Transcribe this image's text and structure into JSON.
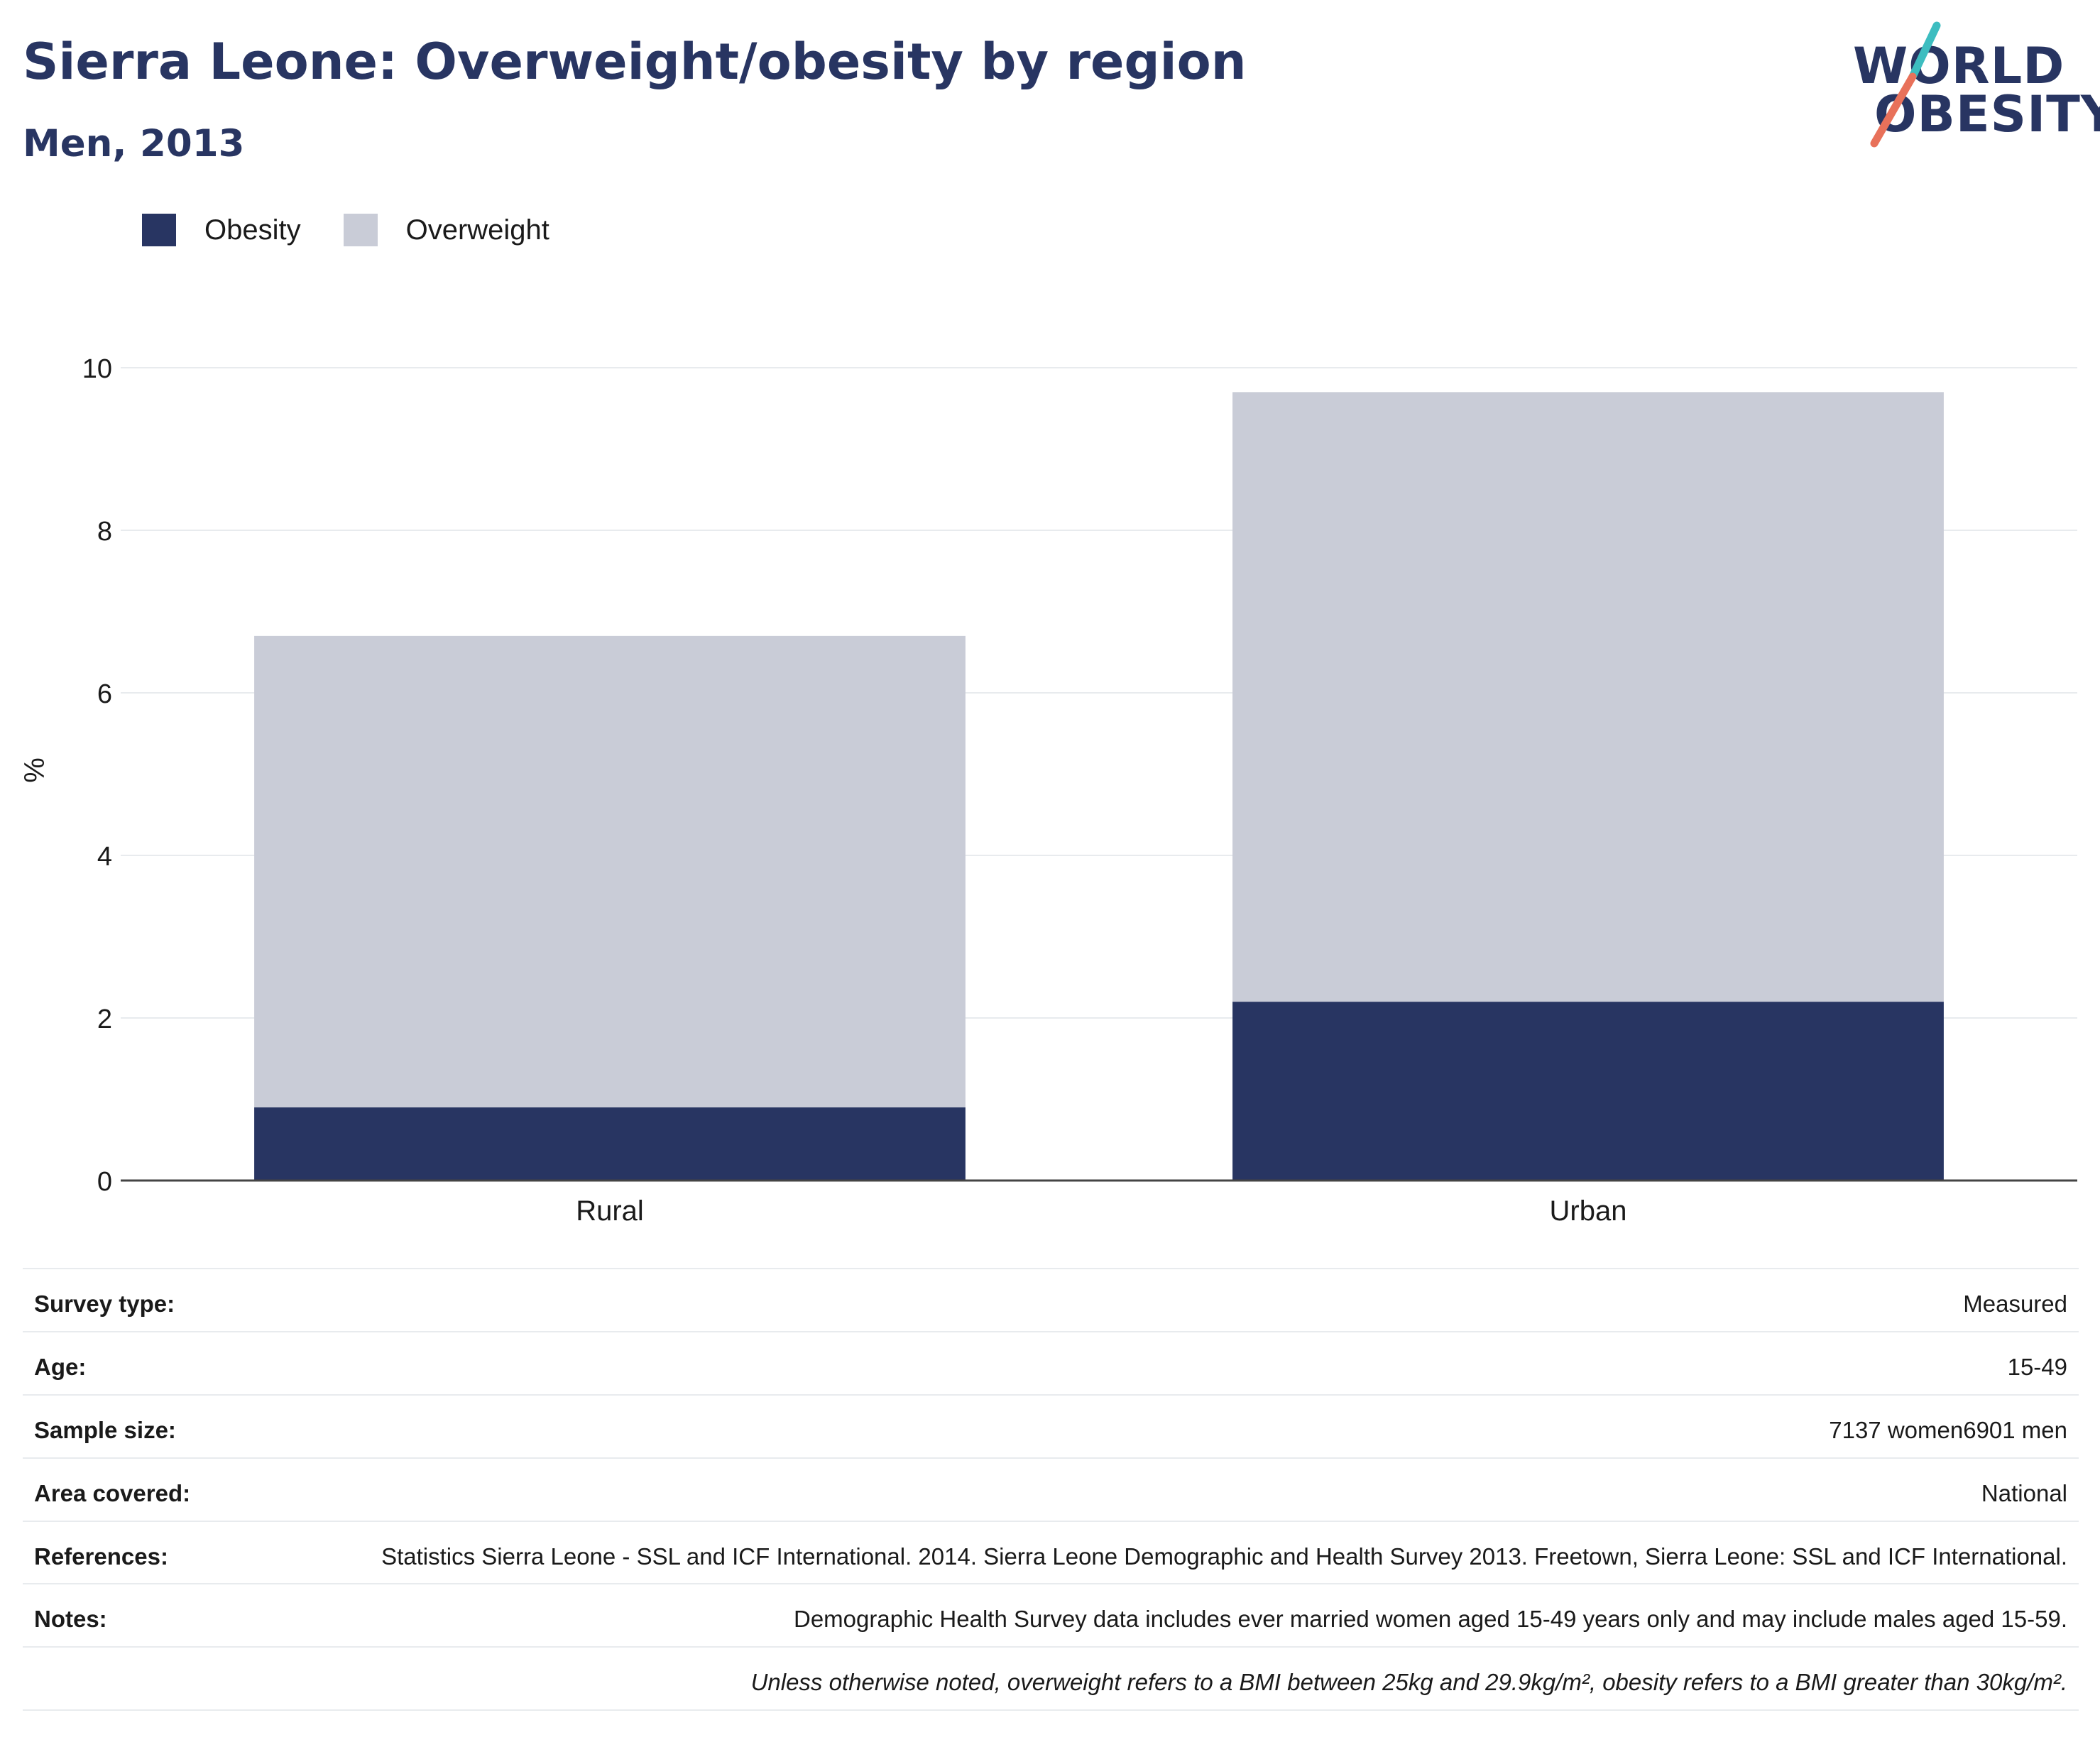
{
  "header": {
    "title": "Sierra Leone: Overweight/obesity by region",
    "subtitle": "Men, 2013"
  },
  "logo": {
    "line1": "WORLD",
    "line2": "OBESITY",
    "colors": {
      "text": "#283562",
      "slash_top": "#3dbdc0",
      "slash_bottom": "#e8715a"
    }
  },
  "colors": {
    "obesity": "#283562",
    "overweight": "#c9ccd7",
    "gridline": "#e8ebee",
    "axis": "#444444"
  },
  "chart_data": {
    "type": "bar",
    "stacked": true,
    "categories": [
      "Rural",
      "Urban"
    ],
    "series": [
      {
        "name": "Obesity",
        "values": [
          0.9,
          2.2
        ]
      },
      {
        "name": "Overweight",
        "values": [
          5.8,
          7.5
        ]
      }
    ],
    "ylabel": "%",
    "ylim": [
      0,
      10
    ],
    "yticks": [
      0,
      2,
      4,
      6,
      8,
      10
    ],
    "grid": true,
    "legend_position": "top-left"
  },
  "details": {
    "rows": [
      {
        "label": "Survey type:",
        "value": "Measured"
      },
      {
        "label": "Age:",
        "value": "15-49"
      },
      {
        "label": "Sample size:",
        "value": "7137 women6901 men"
      },
      {
        "label": "Area covered:",
        "value": "National"
      },
      {
        "label": "References:",
        "value": "Statistics Sierra Leone - SSL and ICF International. 2014. Sierra Leone Demographic and Health Survey 2013. Freetown, Sierra Leone: SSL and ICF International."
      },
      {
        "label": "Notes:",
        "value": "Demographic Health Survey data includes ever married women aged 15-49 years only and may include males aged 15-59."
      }
    ],
    "footnote": "Unless otherwise noted, overweight refers to a BMI between 25kg and 29.9kg/m², obesity refers to a BMI greater than 30kg/m²."
  }
}
